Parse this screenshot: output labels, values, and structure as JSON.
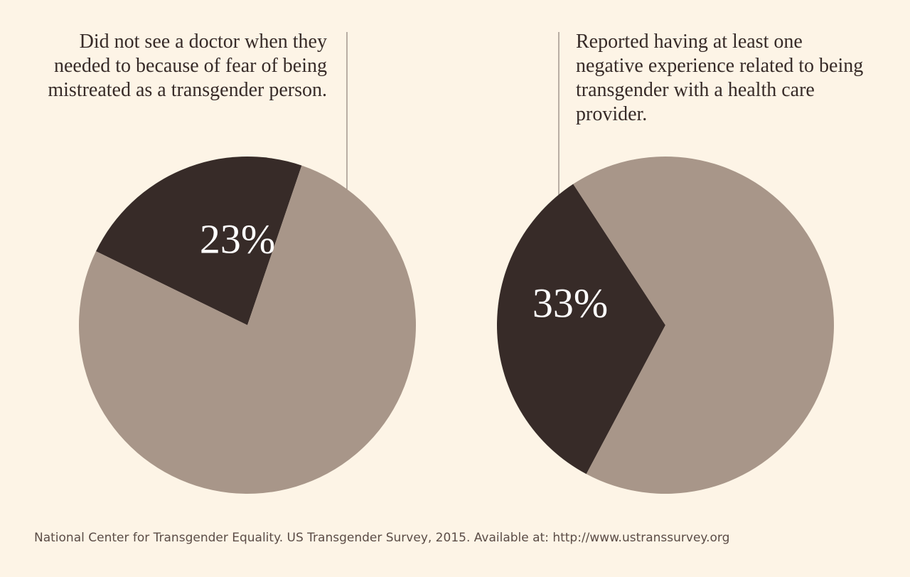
{
  "chart_data": [
    {
      "type": "pie",
      "title": "Did not see a doctor when they needed to because of fear of being mistreated as a transgender person.",
      "values": [
        23,
        77
      ],
      "value_labels": [
        "23%",
        null
      ],
      "colors": [
        "#372b28",
        "#a89689"
      ]
    },
    {
      "type": "pie",
      "title": "Reported having at least one negative experience related to being transgender with a health care provider.",
      "values": [
        33,
        67
      ],
      "value_labels": [
        "33%",
        null
      ],
      "colors": [
        "#372b28",
        "#a89689"
      ]
    }
  ],
  "source": "National Center for Transgender Equality. US Transgender Survey, 2015. Available at: http://www.ustranssurvey.org"
}
